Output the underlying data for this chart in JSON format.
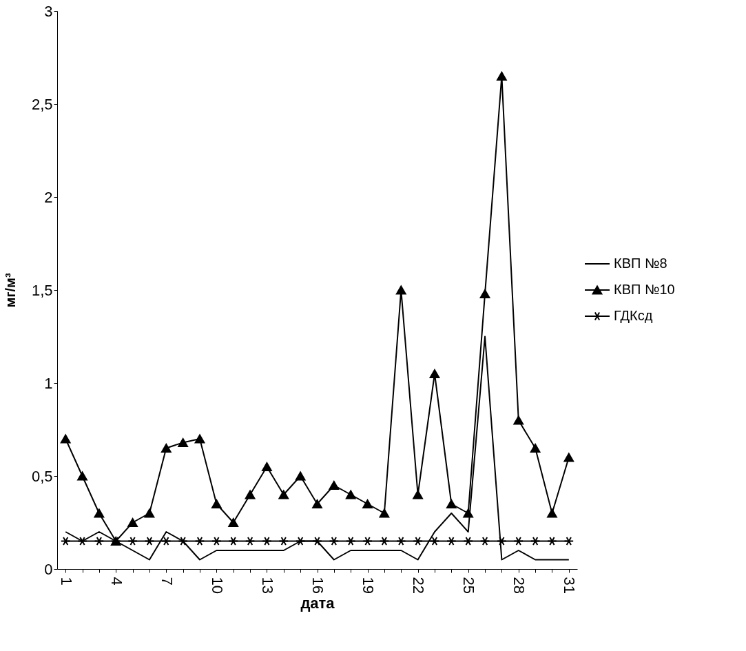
{
  "chart_data": {
    "type": "line",
    "xlabel": "дата",
    "ylabel": "мг/м³",
    "categories": [
      "1",
      null,
      null,
      "4",
      null,
      null,
      "7",
      null,
      null,
      "10",
      null,
      null,
      "13",
      null,
      null,
      "16",
      null,
      null,
      "19",
      null,
      null,
      "22",
      null,
      null,
      "25",
      null,
      null,
      "28",
      null,
      null,
      "31"
    ],
    "series": [
      {
        "name": "КВП №8",
        "color": "#000000",
        "marker": "none",
        "values": [
          0.2,
          0.15,
          0.2,
          0.15,
          0.1,
          0.05,
          0.2,
          0.15,
          0.05,
          0.1,
          0.1,
          0.1,
          0.1,
          0.1,
          0.15,
          0.15,
          0.05,
          0.1,
          0.1,
          0.1,
          0.1,
          0.05,
          0.2,
          0.3,
          0.2,
          1.25,
          0.05,
          0.1,
          0.05,
          0.05,
          0.05
        ]
      },
      {
        "name": "КВП №10",
        "color": "#000000",
        "marker": "triangle",
        "values": [
          0.7,
          0.5,
          0.3,
          0.15,
          0.25,
          0.3,
          0.65,
          0.68,
          0.7,
          0.35,
          0.25,
          0.4,
          0.55,
          0.4,
          0.5,
          0.35,
          0.45,
          0.4,
          0.35,
          0.3,
          1.5,
          0.4,
          1.05,
          0.35,
          0.3,
          1.48,
          2.65,
          0.8,
          0.65,
          0.3,
          0.6
        ]
      },
      {
        "name": "ГДКсд",
        "color": "#000000",
        "marker": "cross",
        "values": [
          0.15,
          0.15,
          0.15,
          0.15,
          0.15,
          0.15,
          0.15,
          0.15,
          0.15,
          0.15,
          0.15,
          0.15,
          0.15,
          0.15,
          0.15,
          0.15,
          0.15,
          0.15,
          0.15,
          0.15,
          0.15,
          0.15,
          0.15,
          0.15,
          0.15,
          0.15,
          0.15,
          0.15,
          0.15,
          0.15,
          0.15
        ]
      }
    ],
    "ylim": [
      0,
      3
    ],
    "yticks": [
      0,
      {
        "value": 0.5,
        "label": "0,5"
      },
      1,
      {
        "value": 1.5,
        "label": "1,5"
      },
      2,
      {
        "value": 2.5,
        "label": "2,5"
      },
      3
    ],
    "grid": false,
    "legend": "right"
  }
}
